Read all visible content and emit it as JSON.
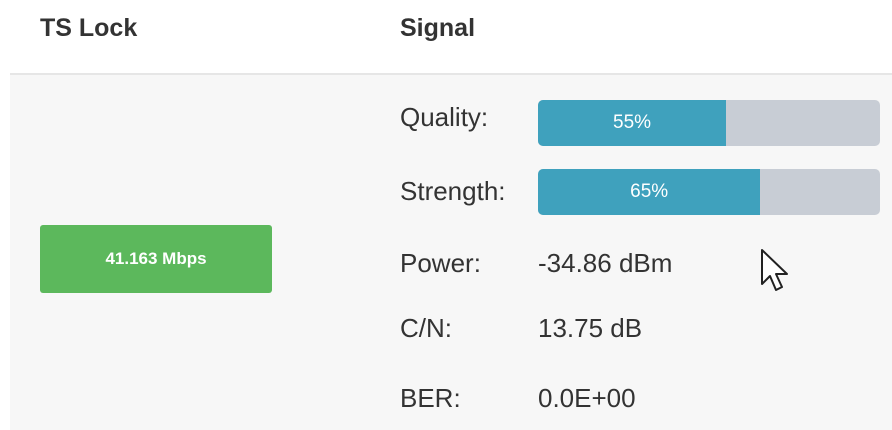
{
  "header": {
    "columns": [
      "TS Lock",
      "Signal"
    ]
  },
  "ts_lock": {
    "bitrate": "41.163 Mbps"
  },
  "signal": {
    "quality": {
      "label": "Quality:",
      "value": {
        "value": 55,
        "label": "55%"
      }
    },
    "strength": {
      "label": "Strength:",
      "value": {
        "value": 65,
        "label": "65%"
      }
    },
    "power": {
      "label": "Power:",
      "value": "-34.86 dBm"
    },
    "cn": {
      "label": "C/N:",
      "value": "13.75 dB"
    },
    "ber": {
      "label": "BER:",
      "value": "0.0E+00"
    }
  }
}
